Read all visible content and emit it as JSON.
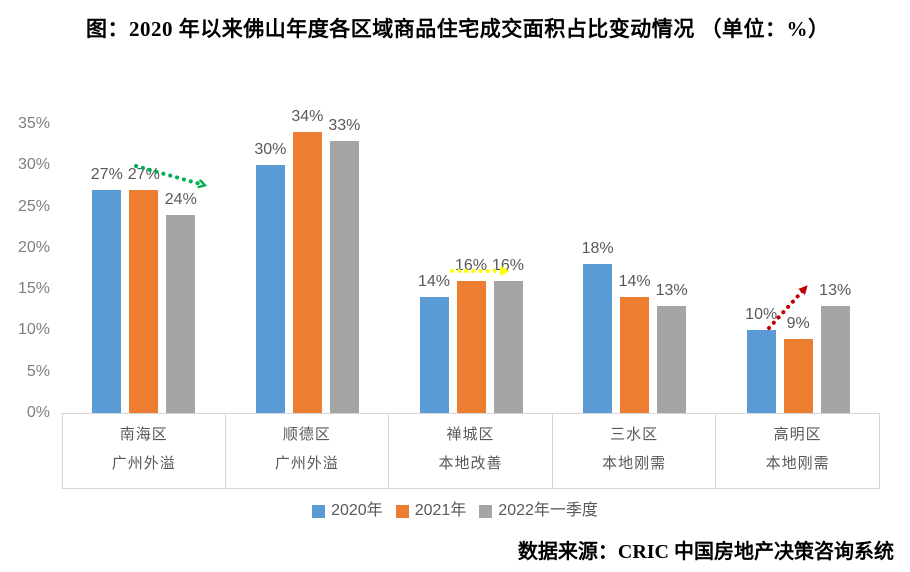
{
  "title": "图：2020 年以来佛山年度各区域商品住宅成交面积占比变动情况 （单位：%）",
  "source": "数据来源：CRIC 中国房地产决策咨询系统",
  "styles": {
    "axis_label_color": "#7f7f7f",
    "data_label_color": "#595959",
    "category_label_color": "#595959",
    "box_border_color": "#d6d6d6",
    "background": "#ffffff"
  },
  "chart_data": {
    "type": "bar",
    "title": "图：2020 年以来佛山年度各区域商品住宅成交面积占比变动情况",
    "unit": "%",
    "categories": [
      "南海区",
      "顺德区",
      "禅城区",
      "三水区",
      "高明区"
    ],
    "category_sublabels": [
      "广州外溢",
      "广州外溢",
      "本地改善",
      "本地刚需",
      "本地刚需"
    ],
    "series": [
      {
        "name": "2020年",
        "color": "#5B9BD5",
        "values": [
          27,
          30,
          14,
          18,
          10
        ]
      },
      {
        "name": "2021年",
        "color": "#ED7D31",
        "values": [
          27,
          34,
          16,
          14,
          9
        ]
      },
      {
        "name": "2022年一季度",
        "color": "#A5A5A5",
        "values": [
          24,
          33,
          16,
          13,
          13
        ]
      }
    ],
    "data_label_suffix": "%",
    "ylim": [
      0,
      35
    ],
    "yticks": [
      "0%",
      "5%",
      "10%",
      "15%",
      "20%",
      "25%",
      "30%",
      "35%"
    ],
    "grid": false,
    "legend_position": "bottom",
    "annotations": [
      {
        "type": "trend-arrow",
        "category": "南海区",
        "direction": "down-right",
        "color": "#00B050",
        "head": "chevron",
        "from_value": 27,
        "to_value": 24
      },
      {
        "type": "trend-arrow",
        "category": "禅城区",
        "direction": "right",
        "color": "#FFFF00",
        "head": "chevron",
        "from_value": 14,
        "to_value": 16
      },
      {
        "type": "trend-arrow",
        "category": "高明区",
        "direction": "up-right",
        "color": "#C00000",
        "head": "triangle",
        "from_value": 10,
        "to_value": 13
      }
    ]
  }
}
